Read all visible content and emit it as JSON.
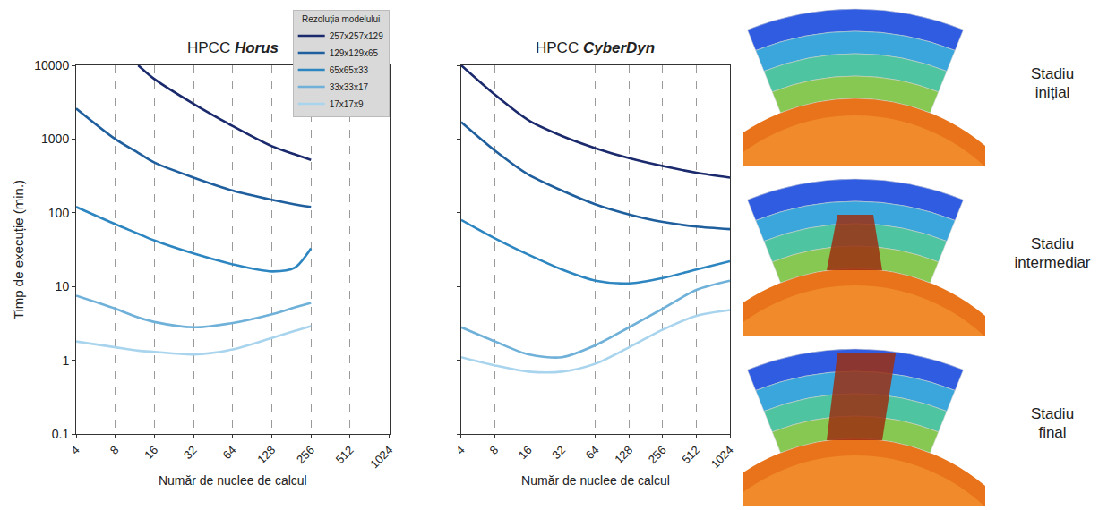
{
  "chart_data": [
    {
      "type": "line",
      "title": "HPCC Horus",
      "x_label": "Număr de nuclee de calcul",
      "y_label": "Timp de execuție (min.)",
      "x": [
        4,
        8,
        12,
        16,
        32,
        64,
        128,
        192,
        256
      ],
      "series": [
        {
          "name": "257x257x129",
          "color": "#1a2a6c",
          "values": [
            null,
            null,
            10000,
            6500,
            3000,
            1500,
            800,
            620,
            520
          ]
        },
        {
          "name": "129x129x65",
          "color": "#1f5f9e",
          "values": [
            2600,
            1000,
            650,
            480,
            300,
            200,
            150,
            130,
            120
          ]
        },
        {
          "name": "65x65x33",
          "color": "#2e86c1",
          "values": [
            120,
            70,
            52,
            42,
            28,
            20,
            16,
            18,
            33
          ]
        },
        {
          "name": "33x33x17",
          "color": "#6fb1d9",
          "values": [
            7.5,
            5,
            3.8,
            3.3,
            2.8,
            3.2,
            4.2,
            5.2,
            6
          ]
        },
        {
          "name": "17x17x9",
          "color": "#a9d4ee",
          "values": [
            1.8,
            1.5,
            1.35,
            1.3,
            1.2,
            1.4,
            2,
            2.5,
            2.9
          ]
        }
      ],
      "xlim": [
        4,
        1024
      ],
      "xticks": [
        4,
        8,
        16,
        32,
        64,
        128,
        256,
        512,
        1024
      ],
      "ylim": [
        0.1,
        10000
      ],
      "yticks": [
        0.1,
        1,
        10,
        100,
        1000,
        10000
      ],
      "log": true,
      "grid": "x",
      "legend": "top right",
      "legend_title": "Rezoluția modelului"
    },
    {
      "type": "line",
      "title": "HPCC CyberDyn",
      "x_label": "Număr de nuclee de calcul",
      "x": [
        4,
        8,
        16,
        32,
        64,
        128,
        256,
        512,
        1024
      ],
      "series": [
        {
          "name": "257x257x129",
          "color": "#1a2a6c",
          "values": [
            10000,
            4000,
            1800,
            1100,
            750,
            550,
            430,
            350,
            300
          ]
        },
        {
          "name": "129x129x65",
          "color": "#1f5f9e",
          "values": [
            1700,
            700,
            330,
            200,
            130,
            95,
            75,
            65,
            60
          ]
        },
        {
          "name": "65x65x33",
          "color": "#2e86c1",
          "values": [
            80,
            45,
            27,
            17,
            12,
            11,
            13,
            17,
            22
          ]
        },
        {
          "name": "33x33x17",
          "color": "#6fb1d9",
          "values": [
            2.8,
            1.8,
            1.2,
            1.1,
            1.6,
            2.8,
            5,
            9,
            12
          ]
        },
        {
          "name": "17x17x9",
          "color": "#a9d4ee",
          "values": [
            1.1,
            0.85,
            0.7,
            0.7,
            0.9,
            1.5,
            2.6,
            4,
            4.8
          ]
        }
      ],
      "xlim": [
        4,
        1024
      ],
      "xticks": [
        4,
        8,
        16,
        32,
        64,
        128,
        256,
        512,
        1024
      ],
      "ylim": [
        0.1,
        10000
      ],
      "yticks": [
        0.1,
        1,
        10,
        100,
        1000,
        10000
      ],
      "log": true,
      "grid": "x",
      "tick_labels": "x"
    }
  ],
  "stages": [
    "Stadiu inițial",
    "Stadiu intermediar",
    "Stadiu final"
  ]
}
